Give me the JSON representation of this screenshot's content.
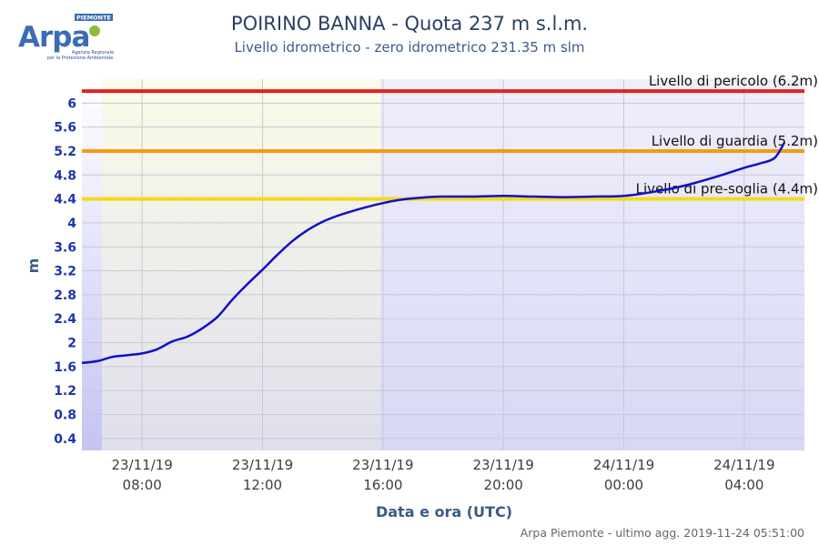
{
  "logo": {
    "brand": "Arpa",
    "region": "PIEMONTE",
    "tagline_1": "Agenzia Regionale",
    "tagline_2": "per la Protezione Ambientale"
  },
  "footer": "Arpa Piemonte - ultimo agg. 2019-11-24 05:51:00",
  "colors": {
    "line": "#1010c8",
    "pericolo": "#e52020",
    "guardia": "#f59b12",
    "presoglia": "#f2db1a",
    "night_bg": "#e8e8f8",
    "highlight_bg": "#f4f4e2"
  },
  "chart_data": {
    "type": "line",
    "title": "POIRINO BANNA - Quota 237 m s.l.m.",
    "subtitle": "Livello idrometrico - zero idrometrico 231.35 m slm",
    "xlabel": "Data e ora (UTC)",
    "ylabel": "m",
    "xlim": [
      "2019-11-23T06:00",
      "2019-11-24T06:00"
    ],
    "ylim": [
      0.2,
      6.4
    ],
    "y_ticks": [
      0.4,
      0.8,
      1.2,
      1.6,
      2,
      2.4,
      2.8,
      3.2,
      3.6,
      4,
      4.4,
      4.8,
      5.2,
      5.6,
      6
    ],
    "x_ticks": [
      {
        "t": "2019-11-23T08:00",
        "date": "23/11/19",
        "time": "08:00"
      },
      {
        "t": "2019-11-23T12:00",
        "date": "23/11/19",
        "time": "12:00"
      },
      {
        "t": "2019-11-23T16:00",
        "date": "23/11/19",
        "time": "16:00"
      },
      {
        "t": "2019-11-23T20:00",
        "date": "23/11/19",
        "time": "20:00"
      },
      {
        "t": "2019-11-24T00:00",
        "date": "24/11/19",
        "time": "00:00"
      },
      {
        "t": "2019-11-24T04:00",
        "date": "24/11/19",
        "time": "04:00"
      }
    ],
    "grid": true,
    "highlight_band": [
      "2019-11-23T06:40",
      "2019-11-23T15:55"
    ],
    "thresholds": [
      {
        "label": "Livello di pericolo (6.2m)",
        "value": 6.2,
        "color": "#e52020"
      },
      {
        "label": "Livello di guardia (5.2m)",
        "value": 5.2,
        "color": "#f59b12"
      },
      {
        "label": "Livello di pre-soglia (4.4m)",
        "value": 4.4,
        "color": "#f2db1a"
      }
    ],
    "series": [
      {
        "x": [
          "2019-11-23T06:00",
          "2019-11-23T06:30",
          "2019-11-23T07:00",
          "2019-11-23T07:30",
          "2019-11-23T08:00",
          "2019-11-23T08:30",
          "2019-11-23T09:00",
          "2019-11-23T09:30",
          "2019-11-23T10:00",
          "2019-11-23T10:30",
          "2019-11-23T11:00",
          "2019-11-23T11:30",
          "2019-11-23T12:00",
          "2019-11-23T12:30",
          "2019-11-23T13:00",
          "2019-11-23T13:30",
          "2019-11-23T14:00",
          "2019-11-23T14:30",
          "2019-11-23T15:00",
          "2019-11-23T15:30",
          "2019-11-23T16:00",
          "2019-11-23T16:30",
          "2019-11-23T17:00",
          "2019-11-23T17:30",
          "2019-11-23T18:00",
          "2019-11-23T19:00",
          "2019-11-23T20:00",
          "2019-11-23T21:00",
          "2019-11-23T22:00",
          "2019-11-23T23:00",
          "2019-11-24T00:00",
          "2019-11-24T01:00",
          "2019-11-24T02:00",
          "2019-11-24T03:00",
          "2019-11-24T04:00",
          "2019-11-24T04:30",
          "2019-11-24T05:00",
          "2019-11-24T05:20"
        ],
        "values": [
          1.66,
          1.69,
          1.76,
          1.79,
          1.82,
          1.89,
          2.02,
          2.1,
          2.24,
          2.43,
          2.72,
          2.98,
          3.22,
          3.47,
          3.7,
          3.88,
          4.02,
          4.12,
          4.2,
          4.27,
          4.33,
          4.38,
          4.41,
          4.43,
          4.44,
          4.44,
          4.45,
          4.44,
          4.43,
          4.44,
          4.45,
          4.52,
          4.62,
          4.76,
          4.92,
          4.99,
          5.08,
          5.34
        ]
      }
    ]
  }
}
